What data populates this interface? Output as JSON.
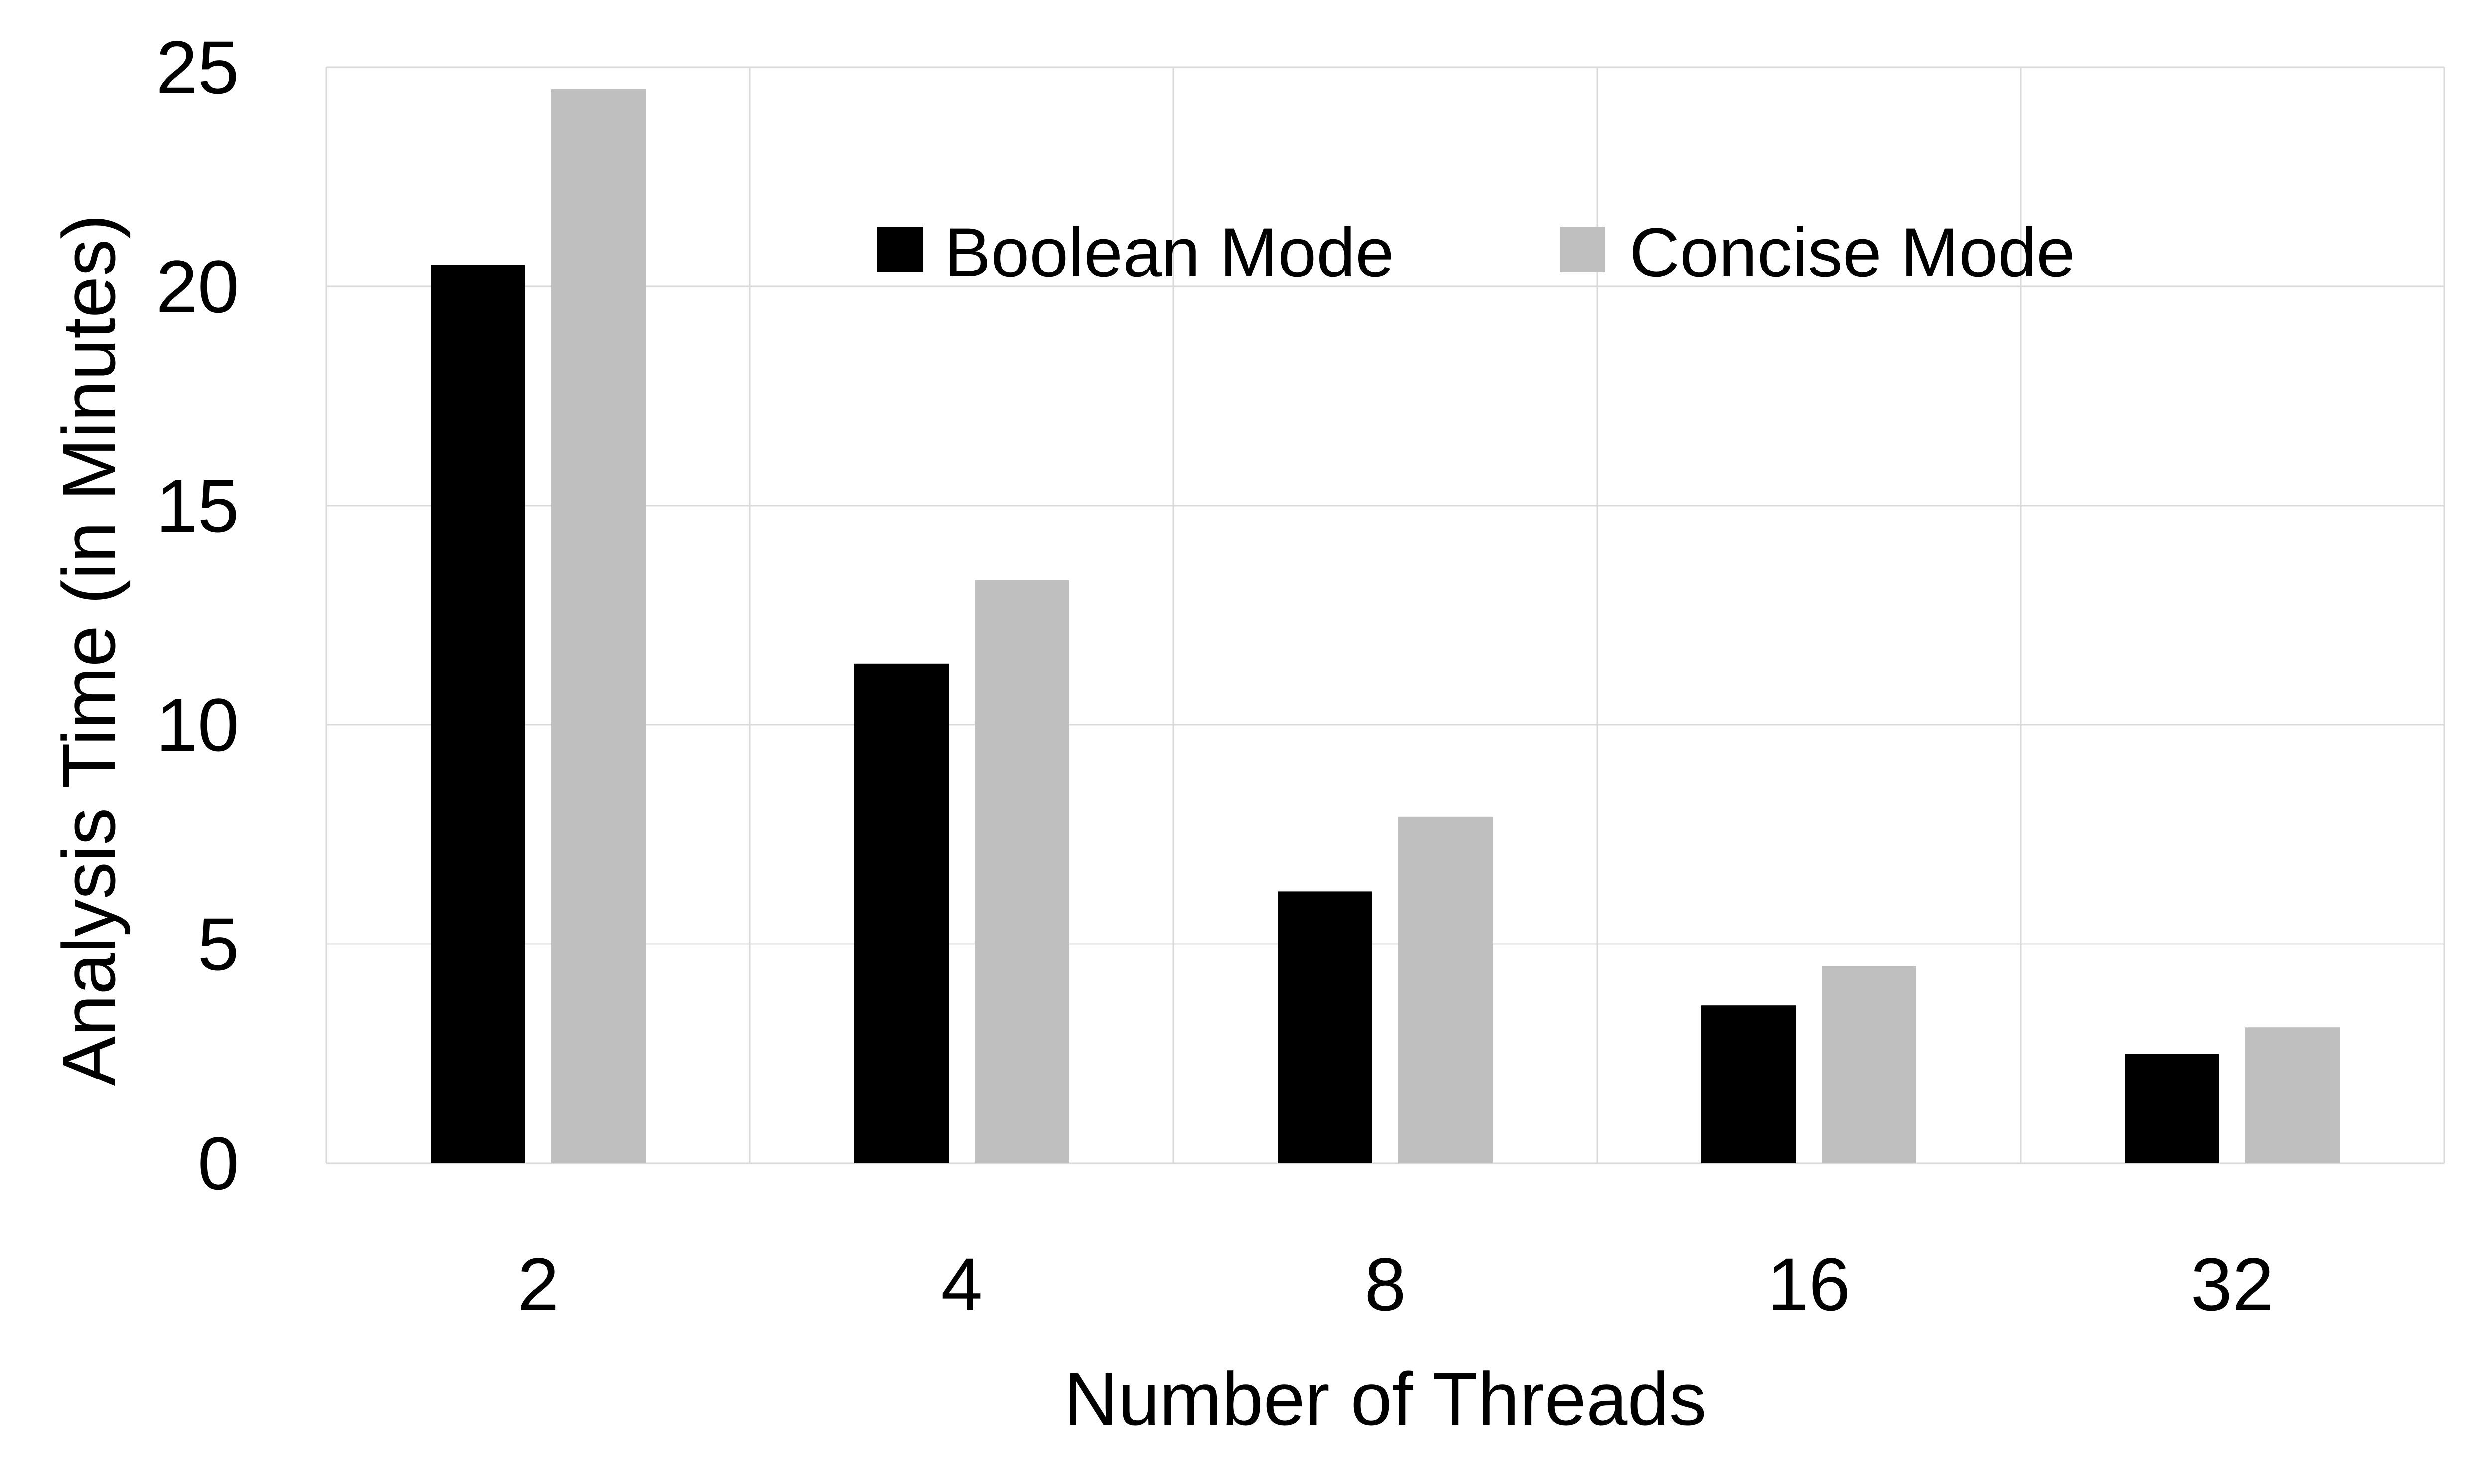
{
  "chart_data": {
    "type": "bar",
    "categories": [
      "2",
      "4",
      "8",
      "16",
      "32"
    ],
    "series": [
      {
        "name": "Boolean Mode",
        "values": [
          20.5,
          11.4,
          6.2,
          3.6,
          2.5
        ],
        "color": "#000000"
      },
      {
        "name": "Concise Mode",
        "values": [
          24.5,
          13.3,
          7.9,
          4.5,
          3.1
        ],
        "color": "#bfbfbf"
      }
    ],
    "title": "",
    "xlabel": "Number of Threads",
    "ylabel": "Analysis Time (in Minutes)",
    "ylim": [
      0,
      25
    ],
    "yticks": [
      0,
      5,
      10,
      15,
      20,
      25
    ],
    "grid": true,
    "legend_position": "top-center"
  }
}
